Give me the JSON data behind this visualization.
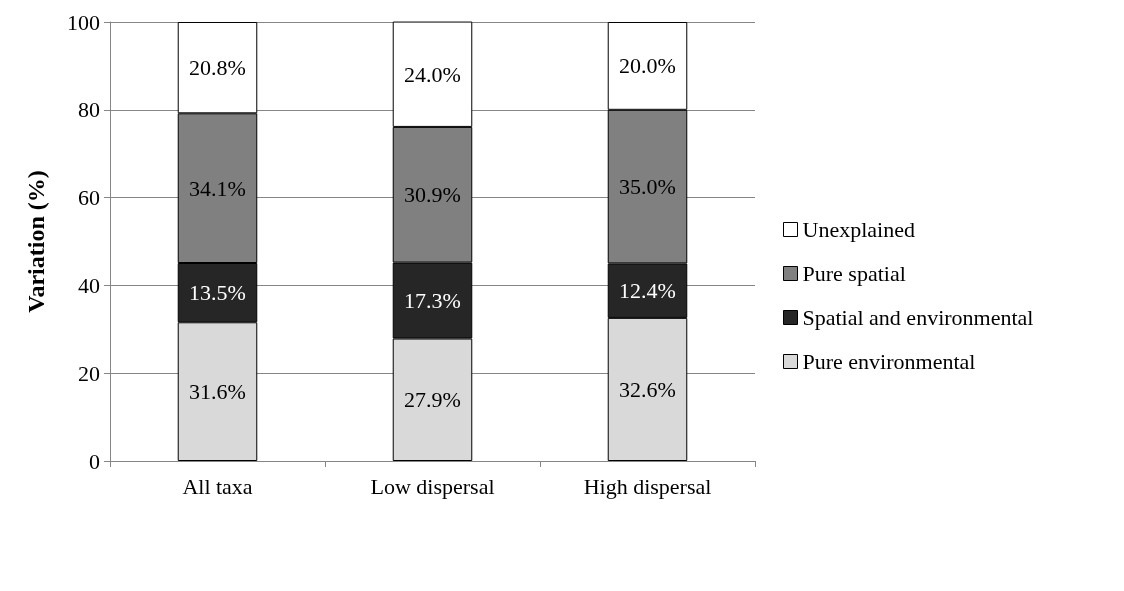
{
  "chart_data": {
    "type": "bar",
    "stacked": true,
    "ylabel": "Variation (%)",
    "categories": [
      "All taxa",
      "Low dispersal",
      "High dispersal"
    ],
    "series": [
      {
        "name": "Pure environmental",
        "color": "#d9d9d9",
        "values": [
          31.6,
          27.9,
          32.6
        ],
        "value_labels": [
          "31.6%",
          "27.9%",
          "32.6%"
        ]
      },
      {
        "name": "Spatial and environmental",
        "color": "#262626",
        "values": [
          13.5,
          17.3,
          12.4
        ],
        "value_labels": [
          "13.5%",
          "17.3%",
          "12.4%"
        ]
      },
      {
        "name": "Pure spatial",
        "color": "#808080",
        "values": [
          34.1,
          30.9,
          35.0
        ],
        "value_labels": [
          "34.1%",
          "30.9%",
          "35.0%"
        ]
      },
      {
        "name": "Unexplained",
        "color": "#ffffff",
        "values": [
          20.8,
          24.0,
          20.0
        ],
        "value_labels": [
          "20.8%",
          "24.0%",
          "20.0%"
        ]
      }
    ],
    "ylim": [
      0,
      100
    ],
    "yticks": [
      0,
      20,
      40,
      60,
      80,
      100
    ],
    "grid": "y",
    "legend": "right"
  }
}
